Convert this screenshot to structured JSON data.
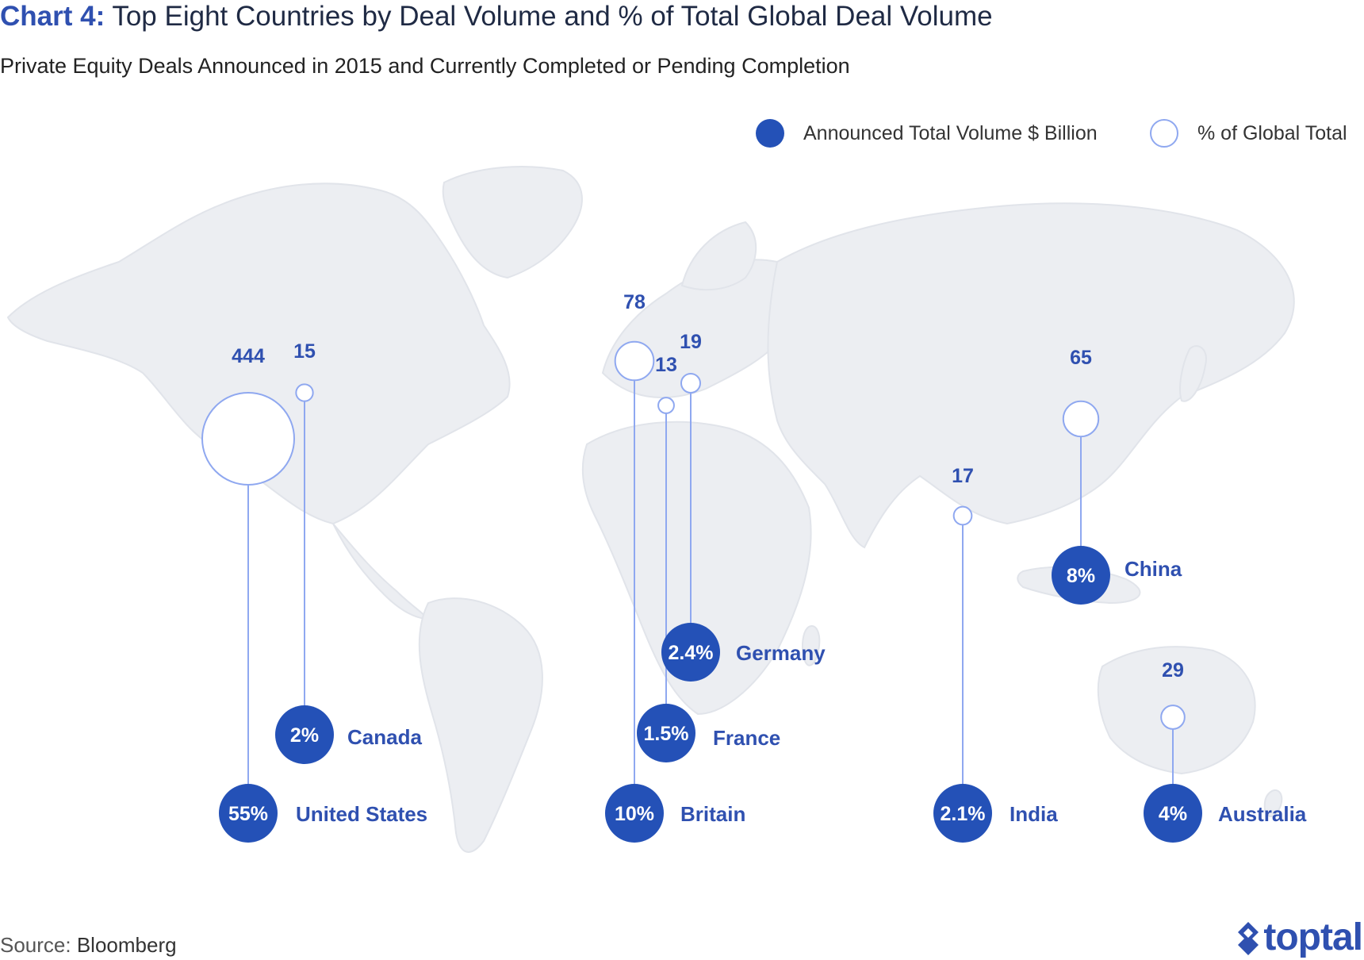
{
  "title": {
    "lead": "Chart 4:",
    "rest": " Top Eight Countries by Deal Volume and % of Total Global Deal Volume"
  },
  "subtitle": "Private Equity Deals Announced in 2015 and Currently Completed or Pending Completion",
  "legend": [
    {
      "label": "Announced Total Volume $ Billion",
      "style": "filled"
    },
    {
      "label": "% of Global Total",
      "style": "hollow"
    }
  ],
  "source": {
    "label": "Source:",
    "value": " Bloomberg"
  },
  "logo": {
    "text": "toptal",
    "icon": "toptal-logo-icon"
  },
  "colors": {
    "filled": "#2451b7",
    "hollow_stroke": "#8fa8f0",
    "label": "#2f50b0",
    "map": "#e9ebef"
  },
  "chart_data": {
    "type": "bubble-map",
    "title": "Top Eight Countries by Deal Volume and % of Total Global Deal Volume",
    "series": [
      {
        "name": "Announced Total Volume $ Billion"
      },
      {
        "name": "% of Global Total"
      }
    ],
    "categories": [
      "United States",
      "Canada",
      "Britain",
      "France",
      "Germany",
      "India",
      "China",
      "Australia"
    ],
    "volume_billion": [
      444,
      15,
      78,
      13,
      19,
      17,
      65,
      29
    ],
    "pct_global": [
      "55%",
      "2%",
      "10%",
      "1.5%",
      "2.4%",
      "2.1%",
      "8%",
      "4%"
    ],
    "volume_labels": [
      "444",
      "15",
      "78",
      "13",
      "19",
      "17",
      "65",
      "29"
    ],
    "legend_position": "top-right"
  }
}
